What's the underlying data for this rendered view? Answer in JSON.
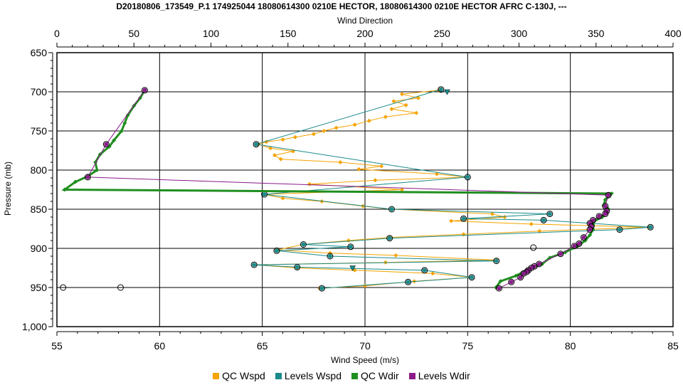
{
  "chart_data": {
    "type": "scatter",
    "title": "D20180806_173549_P.1 174925044 18080614300 0210E HECTOR, 18080614300 0210E HECTOR AFRC C-130J, ---",
    "xlabel": "Wind Speed (m/s)",
    "x2label": "Wind Direction",
    "ylabel": "Pressure (mb)",
    "xlim": [
      55,
      85
    ],
    "x2lim": [
      0,
      400
    ],
    "ylim": [
      650,
      1000
    ],
    "y_inverted": true,
    "grid": true,
    "legend_position": "bottom",
    "x_ticks": [
      "55",
      "60",
      "65",
      "70",
      "75",
      "80",
      "85"
    ],
    "x2_ticks": [
      "0",
      "50",
      "100",
      "150",
      "200",
      "250",
      "300",
      "350",
      "400"
    ],
    "y_ticks": [
      "650",
      "700",
      "750",
      "800",
      "850",
      "900",
      "950",
      "1,000"
    ],
    "y_tick_values": [
      650,
      700,
      750,
      800,
      850,
      900,
      950,
      1000
    ],
    "series": [
      {
        "name": "QC Wspd",
        "color": "#f5a300",
        "axis": "bottom",
        "points": [
          [
            73.6,
            698
          ],
          [
            71.8,
            703
          ],
          [
            72.6,
            708
          ],
          [
            71.4,
            712
          ],
          [
            72.0,
            717
          ],
          [
            71.3,
            722
          ],
          [
            72.5,
            727
          ],
          [
            71.0,
            732
          ],
          [
            70.2,
            737
          ],
          [
            69.5,
            742
          ],
          [
            68.6,
            746
          ],
          [
            68.0,
            750
          ],
          [
            67.5,
            754
          ],
          [
            66.6,
            758
          ],
          [
            66.0,
            761
          ],
          [
            65.2,
            764
          ],
          [
            64.8,
            767
          ],
          [
            65.4,
            772
          ],
          [
            66.5,
            776
          ],
          [
            65.6,
            781
          ],
          [
            65.9,
            786
          ],
          [
            68.8,
            790
          ],
          [
            70.8,
            795
          ],
          [
            69.7,
            799
          ],
          [
            73.5,
            805
          ],
          [
            75.0,
            809
          ],
          [
            70.5,
            813
          ],
          [
            67.3,
            818
          ],
          [
            71.8,
            825
          ],
          [
            65.1,
            831
          ],
          [
            66.0,
            836
          ],
          [
            67.9,
            840
          ],
          [
            69.9,
            846
          ],
          [
            71.3,
            850
          ],
          [
            76.2,
            856
          ],
          [
            76.8,
            860
          ],
          [
            74.2,
            865
          ],
          [
            78.1,
            869
          ],
          [
            83.8,
            873
          ],
          [
            78.5,
            878
          ],
          [
            74.8,
            882
          ],
          [
            71.2,
            886
          ],
          [
            69.2,
            890
          ],
          [
            67.0,
            895
          ],
          [
            65.7,
            902
          ],
          [
            68.3,
            906
          ],
          [
            71.5,
            909
          ],
          [
            76.4,
            915
          ],
          [
            71.0,
            918
          ],
          [
            64.6,
            921
          ],
          [
            66.7,
            925
          ],
          [
            69.5,
            928
          ],
          [
            73.3,
            932
          ],
          [
            75.2,
            937
          ],
          [
            72.4,
            942
          ],
          [
            70.0,
            948
          ],
          [
            67.8,
            951
          ]
        ]
      },
      {
        "name": "Levels Wspd",
        "color": "#1a8a8a",
        "axis": "bottom",
        "points": [
          [
            73.7,
            697
          ],
          [
            64.7,
            767
          ],
          [
            75.0,
            809
          ],
          [
            65.1,
            831
          ],
          [
            71.3,
            850
          ],
          [
            79.0,
            856
          ],
          [
            74.8,
            862
          ],
          [
            78.7,
            864
          ],
          [
            83.9,
            873
          ],
          [
            82.4,
            876
          ],
          [
            71.2,
            887
          ],
          [
            67.0,
            895
          ],
          [
            69.3,
            898
          ],
          [
            65.7,
            903
          ],
          [
            68.3,
            910
          ],
          [
            76.4,
            916
          ],
          [
            64.6,
            921
          ],
          [
            66.7,
            924
          ],
          [
            72.9,
            928
          ],
          [
            75.2,
            937
          ],
          [
            72.1,
            943
          ],
          [
            67.9,
            951
          ]
        ]
      },
      {
        "name": "QC Wdir",
        "color": "#1f8f1f",
        "axis": "top",
        "points": [
          [
            57,
            698
          ],
          [
            54,
            708
          ],
          [
            50,
            718
          ],
          [
            46,
            730
          ],
          [
            44,
            740
          ],
          [
            42,
            750
          ],
          [
            37,
            762
          ],
          [
            34,
            770
          ],
          [
            28,
            780
          ],
          [
            25,
            790
          ],
          [
            26,
            800
          ],
          [
            20,
            808
          ],
          [
            12,
            815
          ],
          [
            5,
            825
          ],
          [
            360,
            830
          ],
          [
            356,
            838
          ],
          [
            355,
            845
          ],
          [
            358,
            850
          ],
          [
            357,
            855
          ],
          [
            354,
            860
          ],
          [
            349,
            865
          ],
          [
            348,
            870
          ],
          [
            348,
            876
          ],
          [
            346,
            883
          ],
          [
            343,
            890
          ],
          [
            338,
            897
          ],
          [
            330,
            905
          ],
          [
            320,
            912
          ],
          [
            315,
            920
          ],
          [
            305,
            928
          ],
          [
            298,
            935
          ],
          [
            288,
            942
          ],
          [
            285,
            950
          ]
        ]
      },
      {
        "name": "Levels Wdir",
        "color": "#8a1a8a",
        "axis": "top",
        "points": [
          [
            57,
            698
          ],
          [
            32,
            767
          ],
          [
            20,
            809
          ],
          [
            358,
            832
          ],
          [
            356,
            846
          ],
          [
            357,
            852
          ],
          [
            356,
            856
          ],
          [
            352,
            859
          ],
          [
            348,
            864
          ],
          [
            346,
            868
          ],
          [
            347,
            872
          ],
          [
            346,
            876
          ],
          [
            342,
            886
          ],
          [
            339,
            894
          ],
          [
            336,
            897
          ],
          [
            327,
            907
          ],
          [
            313,
            920
          ],
          [
            310,
            923
          ],
          [
            308,
            925
          ],
          [
            306,
            928
          ],
          [
            305,
            930
          ],
          [
            303,
            932
          ],
          [
            301,
            937
          ],
          [
            295,
            943
          ],
          [
            287,
            951
          ]
        ]
      },
      {
        "name": "",
        "color": "#000000",
        "axis": "bottom",
        "marker": "open-circle",
        "points": [
          [
            55.3,
            950
          ],
          [
            58.1,
            950
          ],
          [
            78.2,
            899
          ]
        ]
      }
    ],
    "triangles": [
      {
        "x": 74.0,
        "y": 700,
        "color": "#1a8a8a"
      },
      {
        "x": 69.4,
        "y": 925,
        "color": "#1a8a8a"
      }
    ]
  },
  "legend": {
    "items": [
      {
        "label": "QC Wspd",
        "color": "#f5a300"
      },
      {
        "label": "Levels Wspd",
        "color": "#1a8a8a"
      },
      {
        "label": "QC Wdir",
        "color": "#1f8f1f"
      },
      {
        "label": "Levels Wdir",
        "color": "#8a1a8a"
      }
    ]
  }
}
